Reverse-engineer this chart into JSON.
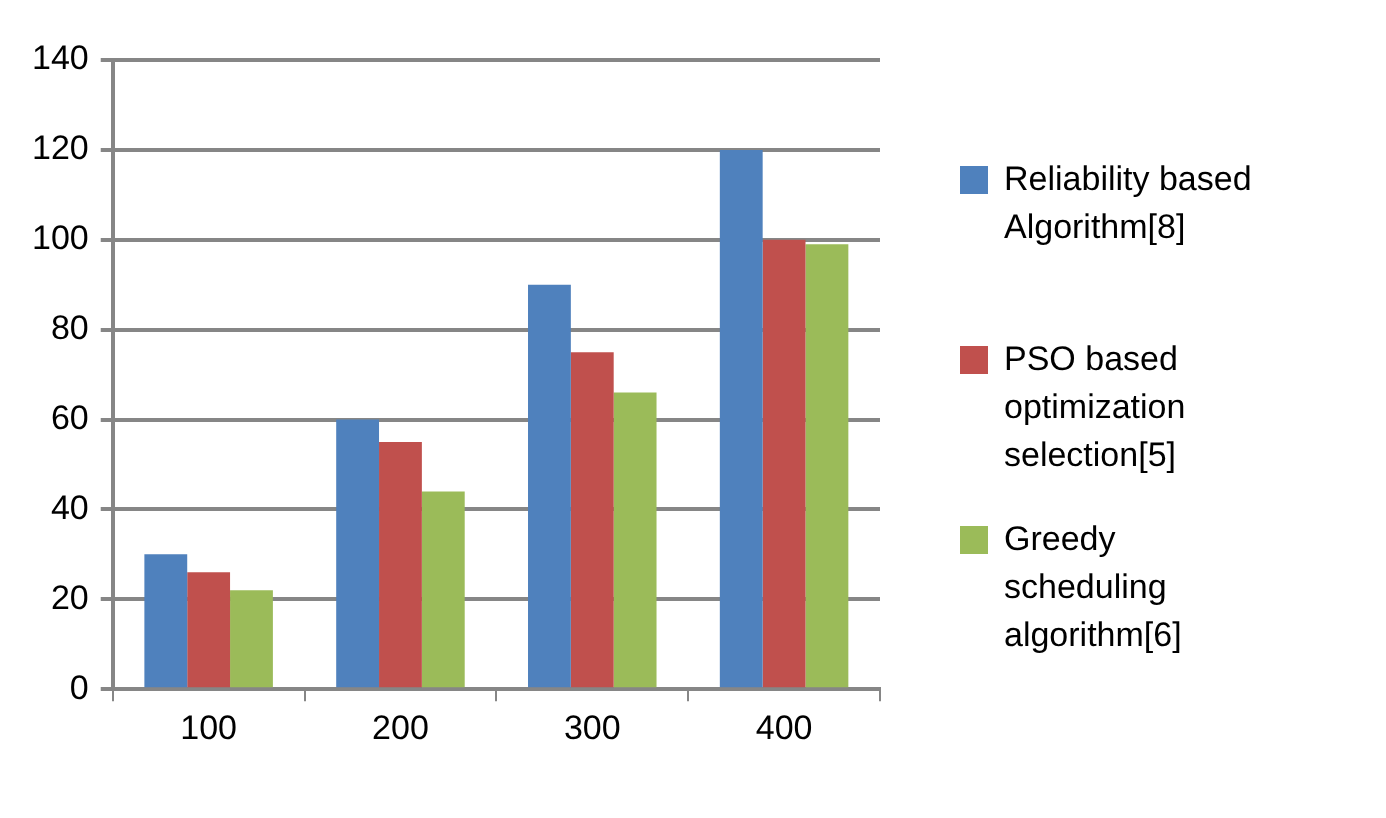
{
  "chart_data": {
    "type": "bar",
    "categories": [
      "100",
      "200",
      "300",
      "400"
    ],
    "series": [
      {
        "name": "Reliability based Algorithm[8]",
        "color": "#4f81bd",
        "values": [
          30,
          60,
          90,
          120
        ]
      },
      {
        "name": "PSO based optimization selection[5]",
        "color": "#c0504d",
        "values": [
          26,
          55,
          75,
          100
        ]
      },
      {
        "name": "Greedy scheduling algorithm[6]",
        "color": "#9bbb59",
        "values": [
          22,
          44,
          66,
          99
        ]
      }
    ],
    "ylim": [
      0,
      140
    ],
    "yticks": [
      0,
      20,
      40,
      60,
      80,
      100,
      120,
      140
    ],
    "grid": "y",
    "legend": "right"
  }
}
